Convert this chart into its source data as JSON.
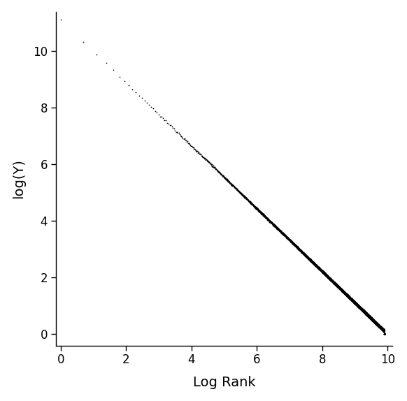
{
  "title": "",
  "xlabel": "Log Rank",
  "ylabel": "log(Y)",
  "xlim": [
    -0.15,
    10.15
  ],
  "ylim": [
    -0.4,
    11.4
  ],
  "xticks": [
    0,
    2,
    4,
    6,
    8,
    10
  ],
  "yticks": [
    0,
    2,
    4,
    6,
    8,
    10
  ],
  "dot_color": "#000000",
  "dot_size": 1.5,
  "background_color": "#ffffff",
  "n_points": 20000,
  "intercept": 11.1,
  "slope": 1.11,
  "noise_scale": 0.015,
  "xlabel_fontsize": 14,
  "ylabel_fontsize": 14,
  "tick_fontsize": 12,
  "spine_linewidth": 1.0
}
